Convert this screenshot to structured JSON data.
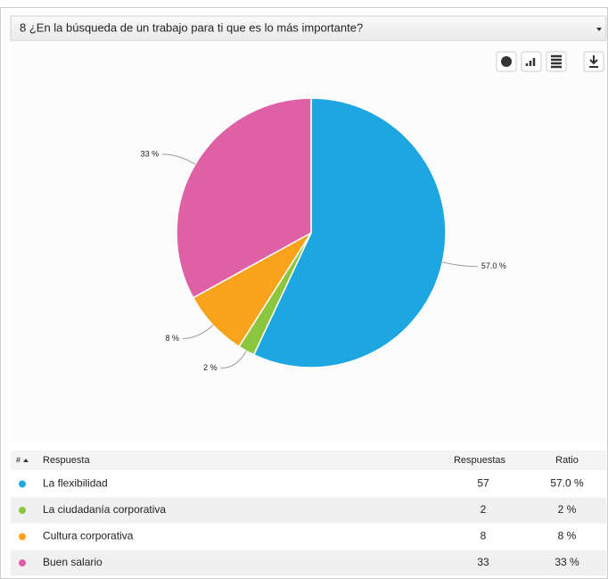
{
  "header": {
    "title": "8 ¿En la búsqueda de un trabajo para ti que es lo más importante?"
  },
  "chart_data": {
    "type": "pie",
    "categories": [
      "La flexibilidad",
      "La ciudadanía corporativa",
      "Cultura corporativa",
      "Buen salario"
    ],
    "values": [
      57,
      2,
      8,
      33
    ],
    "value_labels": [
      "57.0 %",
      "2 %",
      "8 %",
      "33 %"
    ],
    "colors": [
      "#1ea6e0",
      "#8cc63e",
      "#f8a31b",
      "#e060a8"
    ]
  },
  "table": {
    "columns": [
      "#",
      "Respuesta",
      "Respuestas",
      "Ratio"
    ],
    "rows": [
      [
        "La flexibilidad",
        "57",
        "57.0 %"
      ],
      [
        "La ciudadanía corporativa",
        "2",
        "2 %"
      ],
      [
        "Cultura corporativa",
        "8",
        "8 %"
      ],
      [
        "Buen salario",
        "33",
        "33 %"
      ]
    ]
  }
}
